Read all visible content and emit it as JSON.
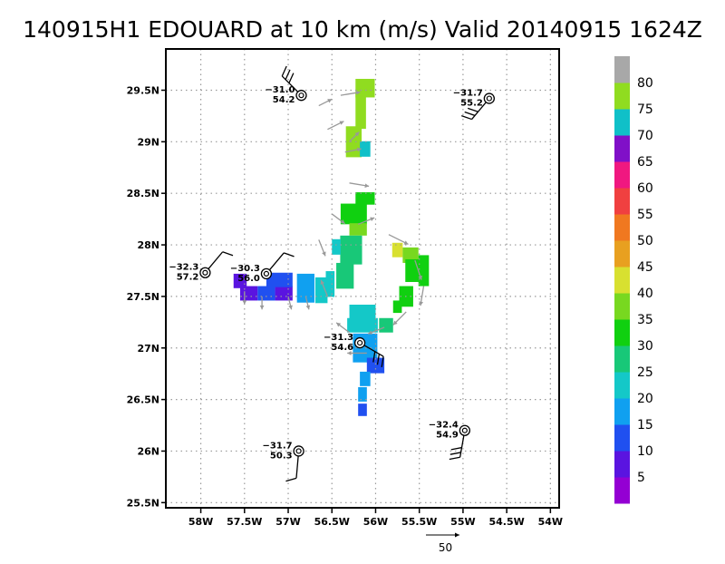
{
  "chart_data": {
    "type": "heatmap",
    "title": "140915H1 EDOUARD at 10 km (m/s) Valid 20140915 1624Z",
    "xlim": [
      -58.4,
      -53.9
    ],
    "ylim": [
      25.45,
      29.9
    ],
    "x_ticks": [
      {
        "value": -58.0,
        "label": "58W"
      },
      {
        "value": -57.5,
        "label": "57.5W"
      },
      {
        "value": -57.0,
        "label": "57W"
      },
      {
        "value": -56.5,
        "label": "56.5W"
      },
      {
        "value": -56.0,
        "label": "56W"
      },
      {
        "value": -55.5,
        "label": "55.5W"
      },
      {
        "value": -55.0,
        "label": "55W"
      },
      {
        "value": -54.5,
        "label": "54.5W"
      },
      {
        "value": -54.0,
        "label": "54W"
      }
    ],
    "y_ticks": [
      {
        "value": 25.5,
        "label": "25.5N"
      },
      {
        "value": 26.0,
        "label": "26N"
      },
      {
        "value": 26.5,
        "label": "26.5N"
      },
      {
        "value": 27.0,
        "label": "27N"
      },
      {
        "value": 27.5,
        "label": "27.5N"
      },
      {
        "value": 28.0,
        "label": "28N"
      },
      {
        "value": 28.5,
        "label": "28.5N"
      },
      {
        "value": 29.0,
        "label": "29N"
      },
      {
        "value": 29.5,
        "label": "29.5N"
      }
    ],
    "grid": true,
    "colorbar": {
      "placement": "right",
      "labels": [
        "5",
        "10",
        "15",
        "20",
        "25",
        "30",
        "35",
        "40",
        "45",
        "50",
        "55",
        "60",
        "65",
        "70",
        "75",
        "80"
      ],
      "colors": [
        "#9400d3",
        "#5a14e0",
        "#2050f0",
        "#10a0f0",
        "#14c8c8",
        "#18c878",
        "#10d010",
        "#78d820",
        "#d8e030",
        "#e8a020",
        "#f07820",
        "#f04040",
        "#f01880",
        "#8010c8",
        "#10c0c8",
        "#90dc20",
        "#a8a8a8"
      ]
    },
    "cells": [
      {
        "lon": -56.12,
        "lat": 29.52,
        "lon_w": 0.22,
        "lat_h": 0.18,
        "value": 75
      },
      {
        "lon": -56.17,
        "lat": 29.3,
        "lon_w": 0.12,
        "lat_h": 0.35,
        "value": 75
      },
      {
        "lon": -56.25,
        "lat": 29.0,
        "lon_w": 0.18,
        "lat_h": 0.3,
        "value": 75
      },
      {
        "lon": -56.12,
        "lat": 28.93,
        "lon_w": 0.12,
        "lat_h": 0.15,
        "value": 72
      },
      {
        "lon": -56.12,
        "lat": 28.45,
        "lon_w": 0.22,
        "lat_h": 0.12,
        "value": 30
      },
      {
        "lon": -56.25,
        "lat": 28.3,
        "lon_w": 0.3,
        "lat_h": 0.2,
        "value": 30
      },
      {
        "lon": -56.2,
        "lat": 28.15,
        "lon_w": 0.2,
        "lat_h": 0.12,
        "value": 36
      },
      {
        "lon": -56.28,
        "lat": 27.95,
        "lon_w": 0.25,
        "lat_h": 0.28,
        "value": 25
      },
      {
        "lon": -56.35,
        "lat": 27.7,
        "lon_w": 0.2,
        "lat_h": 0.25,
        "value": 26
      },
      {
        "lon": -56.45,
        "lat": 27.98,
        "lon_w": 0.1,
        "lat_h": 0.15,
        "value": 24
      },
      {
        "lon": -57.55,
        "lat": 27.65,
        "lon_w": 0.15,
        "lat_h": 0.14,
        "value": 5
      },
      {
        "lon": -57.45,
        "lat": 27.53,
        "lon_w": 0.2,
        "lat_h": 0.14,
        "value": 6
      },
      {
        "lon": -57.25,
        "lat": 27.53,
        "lon_w": 0.2,
        "lat_h": 0.14,
        "value": 10
      },
      {
        "lon": -57.05,
        "lat": 27.53,
        "lon_w": 0.2,
        "lat_h": 0.14,
        "value": 9
      },
      {
        "lon": -57.1,
        "lat": 27.66,
        "lon_w": 0.3,
        "lat_h": 0.14,
        "value": 11
      },
      {
        "lon": -56.8,
        "lat": 27.58,
        "lon_w": 0.2,
        "lat_h": 0.28,
        "value": 15
      },
      {
        "lon": -56.62,
        "lat": 27.56,
        "lon_w": 0.14,
        "lat_h": 0.25,
        "value": 20
      },
      {
        "lon": -56.52,
        "lat": 27.62,
        "lon_w": 0.1,
        "lat_h": 0.25,
        "value": 22
      },
      {
        "lon": -55.75,
        "lat": 27.95,
        "lon_w": 0.12,
        "lat_h": 0.14,
        "value": 42
      },
      {
        "lon": -55.6,
        "lat": 27.9,
        "lon_w": 0.18,
        "lat_h": 0.15,
        "value": 38
      },
      {
        "lon": -55.55,
        "lat": 27.75,
        "lon_w": 0.22,
        "lat_h": 0.22,
        "value": 34
      },
      {
        "lon": -55.45,
        "lat": 27.75,
        "lon_w": 0.12,
        "lat_h": 0.3,
        "value": 30
      },
      {
        "lon": -55.65,
        "lat": 27.5,
        "lon_w": 0.16,
        "lat_h": 0.2,
        "value": 32
      },
      {
        "lon": -55.75,
        "lat": 27.4,
        "lon_w": 0.1,
        "lat_h": 0.12,
        "value": 30
      },
      {
        "lon": -56.15,
        "lat": 27.35,
        "lon_w": 0.3,
        "lat_h": 0.14,
        "value": 24
      },
      {
        "lon": -56.15,
        "lat": 27.22,
        "lon_w": 0.35,
        "lat_h": 0.14,
        "value": 22
      },
      {
        "lon": -55.88,
        "lat": 27.22,
        "lon_w": 0.16,
        "lat_h": 0.14,
        "value": 26
      },
      {
        "lon": -56.12,
        "lat": 27.0,
        "lon_w": 0.28,
        "lat_h": 0.28,
        "value": 19
      },
      {
        "lon": -56.0,
        "lat": 26.83,
        "lon_w": 0.2,
        "lat_h": 0.15,
        "value": 12
      },
      {
        "lon": -56.12,
        "lat": 26.7,
        "lon_w": 0.12,
        "lat_h": 0.14,
        "value": 17
      },
      {
        "lon": -56.15,
        "lat": 26.55,
        "lon_w": 0.1,
        "lat_h": 0.14,
        "value": 15
      },
      {
        "lon": -56.15,
        "lat": 26.4,
        "lon_w": 0.1,
        "lat_h": 0.12,
        "value": 11
      }
    ],
    "wind_arrows": [
      {
        "lon": -56.65,
        "lat": 29.35,
        "u": 8,
        "v": 4
      },
      {
        "lon": -56.4,
        "lat": 29.45,
        "u": 12,
        "v": 2
      },
      {
        "lon": -56.55,
        "lat": 29.12,
        "u": 10,
        "v": 5
      },
      {
        "lon": -56.3,
        "lat": 29.0,
        "u": 6,
        "v": 6
      },
      {
        "lon": -56.35,
        "lat": 28.9,
        "u": 10,
        "v": 2
      },
      {
        "lon": -56.3,
        "lat": 28.6,
        "u": 12,
        "v": -2
      },
      {
        "lon": -56.5,
        "lat": 28.3,
        "u": 8,
        "v": -6
      },
      {
        "lon": -56.65,
        "lat": 28.05,
        "u": 4,
        "v": -10
      },
      {
        "lon": -56.2,
        "lat": 28.2,
        "u": 10,
        "v": 4
      },
      {
        "lon": -55.85,
        "lat": 28.1,
        "u": 12,
        "v": -6
      },
      {
        "lon": -55.55,
        "lat": 27.85,
        "u": 4,
        "v": -12
      },
      {
        "lon": -55.45,
        "lat": 27.6,
        "u": -2,
        "v": -12
      },
      {
        "lon": -55.65,
        "lat": 27.35,
        "u": -8,
        "v": -8
      },
      {
        "lon": -55.9,
        "lat": 27.2,
        "u": -10,
        "v": -4
      },
      {
        "lon": -56.1,
        "lat": 26.95,
        "u": -12,
        "v": 0
      },
      {
        "lon": -56.3,
        "lat": 27.15,
        "u": -8,
        "v": 6
      },
      {
        "lon": -56.55,
        "lat": 27.5,
        "u": -4,
        "v": 10
      },
      {
        "lon": -57.5,
        "lat": 27.55,
        "u": 0,
        "v": -8
      },
      {
        "lon": -57.3,
        "lat": 27.5,
        "u": 0,
        "v": -8
      },
      {
        "lon": -57.0,
        "lat": 27.5,
        "u": 2,
        "v": -8
      },
      {
        "lon": -56.8,
        "lat": 27.5,
        "u": 2,
        "v": -8
      }
    ],
    "observations": [
      {
        "lon": -56.85,
        "lat": 29.45,
        "top": "−31.0",
        "bottom": "54.2",
        "barb_dir": 315,
        "barbs": 3
      },
      {
        "lon": -54.7,
        "lat": 29.42,
        "top": "−31.7",
        "bottom": "55.2",
        "barb_dir": 220,
        "barbs": 3
      },
      {
        "lon": -57.95,
        "lat": 27.73,
        "top": "−32.3",
        "bottom": "57.2",
        "barb_dir": 40,
        "barbs": 1
      },
      {
        "lon": -57.25,
        "lat": 27.72,
        "top": "−30.3",
        "bottom": "56.0",
        "barb_dir": 40,
        "barbs": 1
      },
      {
        "lon": -56.18,
        "lat": 27.05,
        "top": "−31.3",
        "bottom": "54.6",
        "barb_dir": 120,
        "barbs": 3
      },
      {
        "lon": -54.98,
        "lat": 26.2,
        "top": "−32.4",
        "bottom": "54.9",
        "barb_dir": 190,
        "barbs": 3
      },
      {
        "lon": -56.88,
        "lat": 26.0,
        "top": "−31.7",
        "bottom": "50.3",
        "barb_dir": 185,
        "barbs": 1
      }
    ],
    "reference_vector": {
      "value": 50,
      "label": "50"
    }
  }
}
